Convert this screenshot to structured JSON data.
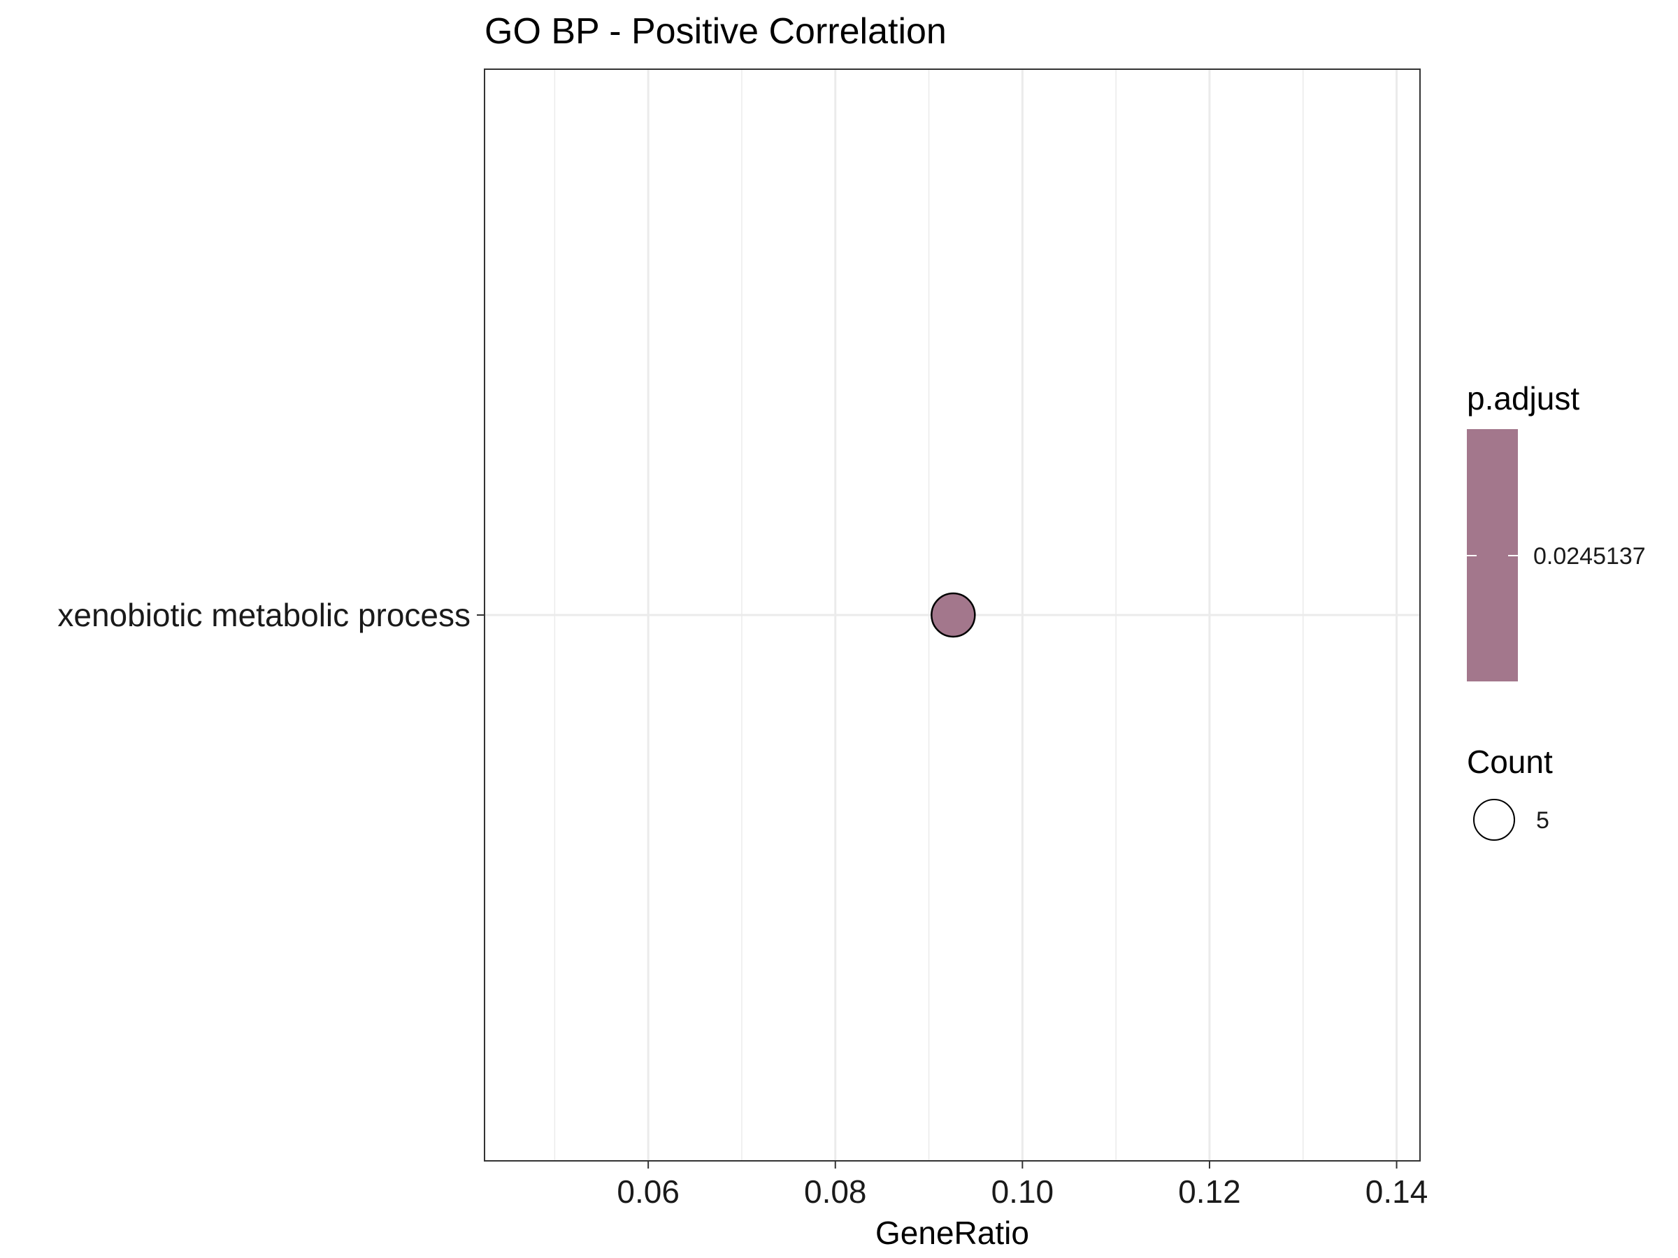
{
  "chart_data": {
    "type": "scatter",
    "title": "GO BP - Positive Correlation",
    "xlabel": "GeneRatio",
    "ylabel": "",
    "xlim": [
      0.0425,
      0.1425
    ],
    "x_ticks": [
      0.06,
      0.08,
      0.1,
      0.12,
      0.14
    ],
    "x_tick_labels": [
      "0.06",
      "0.08",
      "0.10",
      "0.12",
      "0.14"
    ],
    "x_minor_ticks": [
      0.05,
      0.07,
      0.09,
      0.11,
      0.13
    ],
    "categories": [
      "xenobiotic metabolic process"
    ],
    "points": [
      {
        "term": "xenobiotic metabolic process",
        "GeneRatio": 0.0926,
        "Count": 5,
        "p_adjust": 0.0245137
      }
    ],
    "grid": true,
    "legend_position": "right",
    "legend": {
      "color": {
        "title": "p.adjust",
        "labels": [
          "0.0245137"
        ],
        "color": "#a3778c"
      },
      "size": {
        "title": "Count",
        "labels": [
          "5"
        ]
      }
    },
    "colors": {
      "point_fill": "#a3778c",
      "point_stroke": "#000000",
      "grid": "#ebebeb",
      "panel_border": "#333333"
    }
  }
}
